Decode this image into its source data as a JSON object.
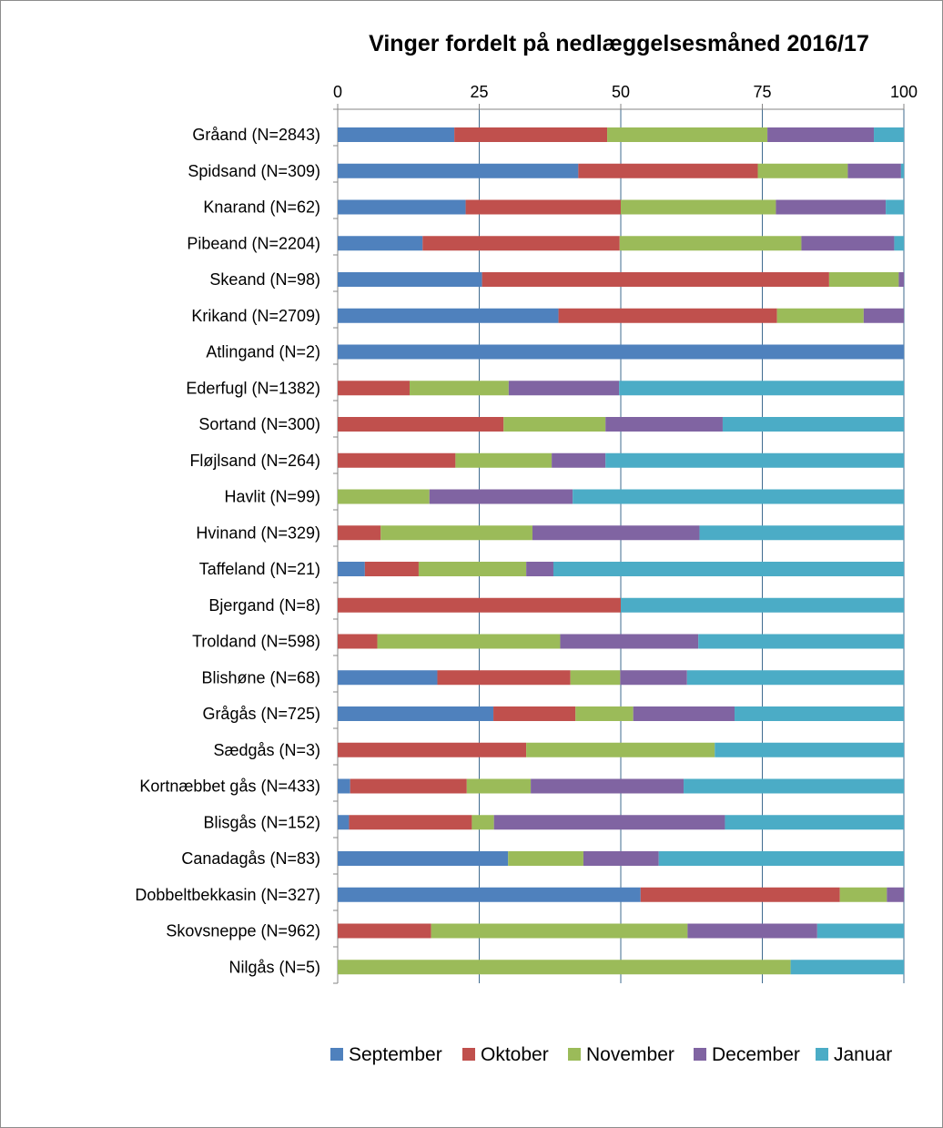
{
  "chart_data": {
    "type": "bar",
    "orientation": "horizontal",
    "stacked": true,
    "title": "Vinger fordelt på nedlæggelsesmåned 2016/17",
    "xlim": [
      0,
      100
    ],
    "x_ticks": [
      "0",
      "25",
      "50",
      "75",
      "100"
    ],
    "grid": true,
    "legend_position": "bottom",
    "categories": [
      "Gråand (N=2843)",
      "Spidsand (N=309)",
      "Knarand (N=62)",
      "Pibeand (N=2204)",
      "Skeand (N=98)",
      "Krikand (N=2709)",
      "Atlingand (N=2)",
      "Ederfugl (N=1382)",
      "Sortand (N=300)",
      "Fløjlsand (N=264)",
      "Havlit (N=99)",
      "Hvinand (N=329)",
      "Taffeland (N=21)",
      "Bjergand (N=8)",
      "Troldand (N=598)",
      "Blishøne (N=68)",
      "Grågås (N=725)",
      "Sædgås (N=3)",
      "Kortnæbbet gås (N=433)",
      "Blisgås (N=152)",
      "Canadagås (N=83)",
      "Dobbeltbekkasin (N=327)",
      "Skovsneppe (N=962)",
      "Nilgås (N=5)"
    ],
    "series": [
      {
        "name": "September",
        "color": "#4f81bd",
        "values": [
          20.6,
          42.5,
          22.6,
          15.0,
          25.5,
          39.0,
          100,
          0,
          0,
          0,
          0,
          0,
          4.8,
          0,
          0,
          17.6,
          27.5,
          0,
          2.2,
          2.0,
          30.1,
          53.5,
          0,
          0
        ]
      },
      {
        "name": "Oktober",
        "color": "#c0504d",
        "values": [
          27.0,
          31.7,
          27.4,
          34.8,
          61.3,
          38.6,
          0,
          12.7,
          29.3,
          20.8,
          0,
          7.6,
          9.5,
          50,
          7.0,
          23.5,
          14.5,
          33.3,
          20.6,
          21.7,
          0,
          35.2,
          16.5,
          0
        ]
      },
      {
        "name": "November",
        "color": "#9bbb59",
        "values": [
          28.3,
          15.9,
          27.4,
          32.1,
          12.3,
          15.3,
          0,
          17.5,
          18.0,
          17.0,
          16.2,
          26.8,
          19.0,
          0,
          32.3,
          8.8,
          10.2,
          33.3,
          11.3,
          3.9,
          13.3,
          8.3,
          45.3,
          80
        ]
      },
      {
        "name": "December",
        "color": "#8064a2",
        "values": [
          18.8,
          9.4,
          19.4,
          16.4,
          0.9,
          7.1,
          0,
          19.5,
          20.7,
          9.5,
          25.3,
          29.5,
          4.8,
          0,
          24.4,
          11.8,
          17.9,
          0,
          27.0,
          40.8,
          13.3,
          3.0,
          22.9,
          0
        ]
      },
      {
        "name": "Januar",
        "color": "#4bacc6",
        "values": [
          5.3,
          0.5,
          3.2,
          1.7,
          0,
          0,
          0,
          50.3,
          32.0,
          52.7,
          58.5,
          36.1,
          61.9,
          50,
          36.3,
          38.3,
          29.9,
          33.4,
          38.9,
          31.6,
          43.3,
          0,
          15.3,
          20
        ]
      }
    ]
  }
}
